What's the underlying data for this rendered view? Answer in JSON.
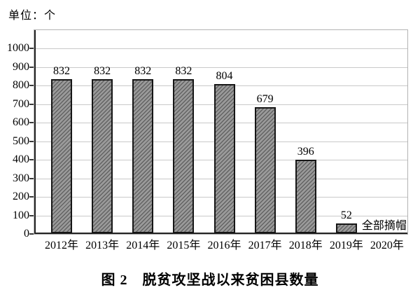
{
  "figure": {
    "unit_label": "单位：个",
    "caption": "图 2　脱贫攻坚战以来贫困县数量"
  },
  "chart_data": {
    "type": "bar",
    "title": "图 2 脱贫攻坚战以来贫困县数量",
    "unit_label": "单位：个",
    "categories": [
      "2012年",
      "2013年",
      "2014年",
      "2015年",
      "2016年",
      "2017年",
      "2018年",
      "2019年",
      "2020年"
    ],
    "values": [
      832,
      832,
      832,
      832,
      804,
      679,
      396,
      52,
      null
    ],
    "bar_value_labels": [
      "832",
      "832",
      "832",
      "832",
      "804",
      "679",
      "396",
      "52",
      ""
    ],
    "annotation": {
      "text": "全部摘帽",
      "after_bar_index": 7
    },
    "xlabel": "",
    "ylabel": "",
    "ylim": [
      0,
      1100
    ],
    "yticks": [
      0,
      100,
      200,
      300,
      400,
      500,
      600,
      700,
      800,
      900,
      1000
    ],
    "grid": true,
    "legend_position": "none",
    "colors": {
      "bar_fill": "#9a9a9a",
      "bar_hatch": "#636363",
      "bar_border": "#161616",
      "gridline": "#c9c9c9",
      "frame": "#b3b3b3",
      "axis": "#242424",
      "text": "#000000"
    }
  }
}
